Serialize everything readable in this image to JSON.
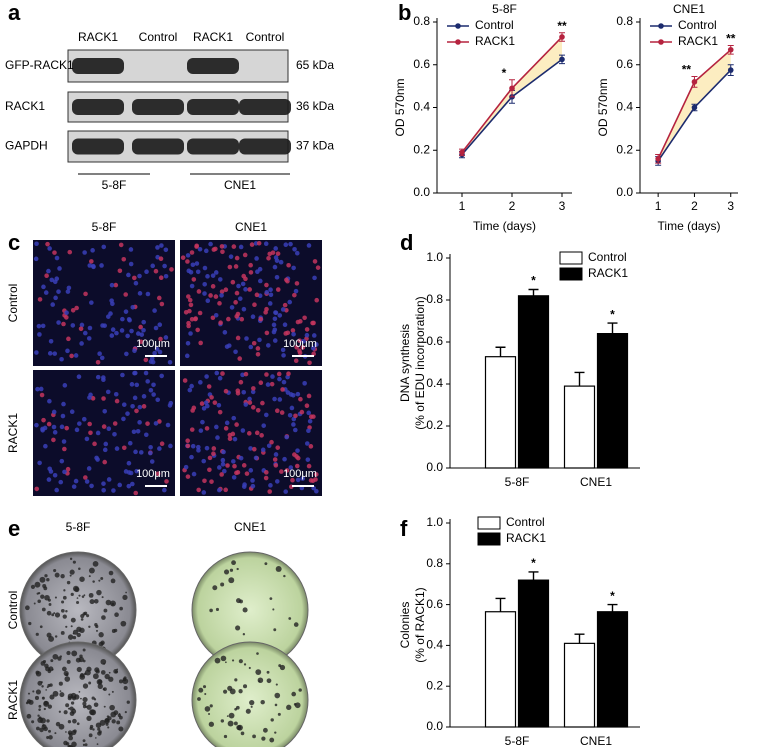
{
  "letters": [
    "a",
    "b",
    "c",
    "d",
    "e",
    "f"
  ],
  "blot": {
    "columns": [
      "RACK1",
      "Control",
      "RACK1",
      "Control"
    ],
    "rows": [
      "GFP-RACK1",
      "RACK1",
      "GAPDH"
    ],
    "sizes": [
      "65 kDa",
      "36 kDa",
      "37 kDa"
    ],
    "groups": [
      "5-8F",
      "CNE1"
    ]
  },
  "micrographs": {
    "columns": [
      "5-8F",
      "CNE1"
    ],
    "rows": [
      "Control",
      "RACK1"
    ],
    "scale_bars": [
      "100μm",
      "100μm",
      "100μm",
      "100μm"
    ]
  },
  "colonies": {
    "columns": [
      "5-8F",
      "CNE1"
    ],
    "rows": [
      "Control",
      "RACK1"
    ]
  },
  "chart_data": [
    {
      "type": "line",
      "title": "5-8F",
      "xlabel": "Time (days)",
      "ylabel": "OD 570nm",
      "x": [
        1,
        2,
        3
      ],
      "xlim": [
        0.5,
        3.2
      ],
      "xticks": [
        1,
        2,
        3
      ],
      "ylim": [
        0,
        0.8
      ],
      "yticks": [
        {
          "value": 0,
          "label": "0.0"
        },
        0.2,
        0.4,
        0.6,
        0.8
      ],
      "legend": "upper left",
      "annotations": [
        null,
        "*",
        "**"
      ],
      "series": [
        {
          "name": "Control",
          "color": "#1c2b6e",
          "values": [
            0.18,
            0.45,
            0.625
          ],
          "errors": [
            0.015,
            0.03,
            0.02
          ]
        },
        {
          "name": "RACK1",
          "color": "#b5233f",
          "values": [
            0.19,
            0.49,
            0.73
          ],
          "errors": [
            0.015,
            0.04,
            0.02
          ]
        }
      ]
    },
    {
      "type": "line",
      "title": "CNE1",
      "xlabel": "Time (days)",
      "ylabel": "OD 570nm",
      "x": [
        1,
        2,
        3
      ],
      "xlim": [
        0.5,
        3.2
      ],
      "xticks": [
        1,
        2,
        3
      ],
      "ylim": [
        0,
        0.8
      ],
      "yticks": [
        {
          "value": 0,
          "label": "0.0"
        },
        0.2,
        0.4,
        0.6,
        0.8
      ],
      "legend": "upper left",
      "annotations": [
        null,
        "**",
        "**"
      ],
      "series": [
        {
          "name": "Control",
          "color": "#1c2b6e",
          "values": [
            0.15,
            0.4,
            0.575
          ],
          "errors": [
            0.02,
            0.015,
            0.025
          ]
        },
        {
          "name": "RACK1",
          "color": "#b5233f",
          "values": [
            0.16,
            0.52,
            0.67
          ],
          "errors": [
            0.02,
            0.025,
            0.02
          ]
        }
      ]
    },
    {
      "type": "bar",
      "ylabel": [
        "DNA synthesis",
        "(% of EDU incorporation)"
      ],
      "categories": [
        "5-8F",
        "CNE1"
      ],
      "ylim": [
        0,
        1
      ],
      "yticks": [
        {
          "value": 0,
          "label": "0.0"
        },
        0.2,
        0.4,
        0.6,
        0.8,
        {
          "value": 1,
          "label": "1.0"
        }
      ],
      "legend": "upper right",
      "series": [
        {
          "name": "Control",
          "color": "#ffffff",
          "values": [
            0.53,
            0.39
          ],
          "errors": [
            0.045,
            0.065
          ],
          "annotations": [
            null,
            null
          ]
        },
        {
          "name": "RACK1",
          "color": "#000000",
          "values": [
            0.82,
            0.64
          ],
          "errors": [
            0.03,
            0.05
          ],
          "annotations": [
            "*",
            "*"
          ]
        }
      ]
    },
    {
      "type": "bar",
      "ylabel": [
        "Colonies",
        "(% of RACK1)"
      ],
      "categories": [
        "5-8F",
        "CNE1"
      ],
      "ylim": [
        0,
        1
      ],
      "yticks": [
        {
          "value": 0,
          "label": "0.0"
        },
        0.2,
        0.4,
        0.6,
        0.8,
        {
          "value": 1,
          "label": "1.0"
        }
      ],
      "legend": "upper left",
      "series": [
        {
          "name": "Control",
          "color": "#ffffff",
          "values": [
            0.565,
            0.41
          ],
          "errors": [
            0.065,
            0.045
          ],
          "annotations": [
            null,
            null
          ]
        },
        {
          "name": "RACK1",
          "color": "#000000",
          "values": [
            0.72,
            0.565
          ],
          "errors": [
            0.04,
            0.035
          ],
          "annotations": [
            "*",
            "*"
          ]
        }
      ]
    }
  ]
}
